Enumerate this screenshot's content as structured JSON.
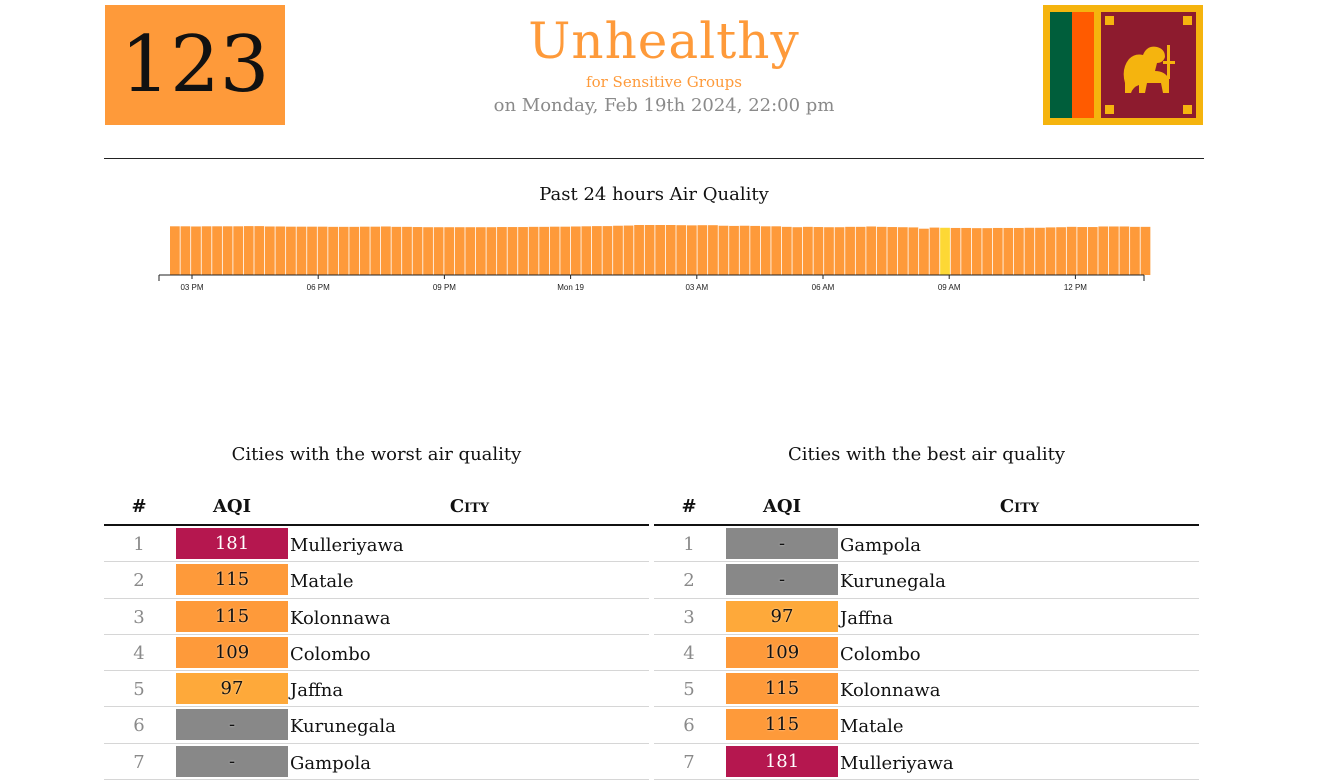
{
  "header": {
    "aqi": "123",
    "status": "Unhealthy",
    "status_sub": "for Sensitive Groups",
    "timestamp": "on Monday, Feb 19th 2024, 22:00 pm",
    "accent_color": "#fe9a3a",
    "flag_icon": "sri-lanka-flag-icon"
  },
  "chart_data": {
    "type": "bar",
    "title": "Past 24 hours Air Quality",
    "x_tick_labels": [
      "03 PM",
      "06 PM",
      "09 PM",
      "Mon 19",
      "03 AM",
      "06 AM",
      "09 AM",
      "12 PM"
    ],
    "values": [
      107,
      107,
      106,
      107,
      107,
      107,
      107,
      108,
      108,
      106,
      106,
      105,
      105,
      105,
      105,
      104,
      104,
      104,
      105,
      105,
      106,
      104,
      104,
      103,
      102,
      102,
      102,
      102,
      102,
      102,
      102,
      103,
      103,
      103,
      104,
      104,
      105,
      105,
      106,
      107,
      108,
      108,
      110,
      111,
      114,
      114,
      114,
      114,
      113,
      112,
      113,
      113,
      110,
      109,
      110,
      109,
      107,
      107,
      104,
      102,
      104,
      103,
      102,
      102,
      104,
      104,
      106,
      104,
      103,
      102,
      101,
      94,
      100,
      99,
      98,
      98,
      97,
      97,
      98,
      98,
      98,
      99,
      99,
      101,
      102,
      104,
      103,
      103,
      106,
      106,
      106,
      104,
      104
    ],
    "highlight_index": 73,
    "bar_color": "#fe9a3a",
    "highlight_color": "#fdd835"
  },
  "worst": {
    "title": "Cities with the worst air quality",
    "headers": {
      "rank": "#",
      "aqi": "AQI",
      "city": "City"
    },
    "rows": [
      {
        "rank": "1",
        "aqi": "181",
        "city": "Mulleriyawa",
        "color": "#b5174f",
        "light": true
      },
      {
        "rank": "2",
        "aqi": "115",
        "city": "Matale",
        "color": "#fe9a3a",
        "light": false
      },
      {
        "rank": "3",
        "aqi": "115",
        "city": "Kolonnawa",
        "color": "#fe9a3a",
        "light": false
      },
      {
        "rank": "4",
        "aqi": "109",
        "city": "Colombo",
        "color": "#fe9a3a",
        "light": false
      },
      {
        "rank": "5",
        "aqi": "97",
        "city": "Jaffna",
        "color": "#fea93a",
        "light": false
      },
      {
        "rank": "6",
        "aqi": "-",
        "city": "Kurunegala",
        "color": "#888888",
        "light": false
      },
      {
        "rank": "7",
        "aqi": "-",
        "city": "Gampola",
        "color": "#888888",
        "light": false
      }
    ]
  },
  "best": {
    "title": "Cities with the best air quality",
    "headers": {
      "rank": "#",
      "aqi": "AQI",
      "city": "City"
    },
    "rows": [
      {
        "rank": "1",
        "aqi": "-",
        "city": "Gampola",
        "color": "#888888",
        "light": false
      },
      {
        "rank": "2",
        "aqi": "-",
        "city": "Kurunegala",
        "color": "#888888",
        "light": false
      },
      {
        "rank": "3",
        "aqi": "97",
        "city": "Jaffna",
        "color": "#fea93a",
        "light": false
      },
      {
        "rank": "4",
        "aqi": "109",
        "city": "Colombo",
        "color": "#fe9a3a",
        "light": false
      },
      {
        "rank": "5",
        "aqi": "115",
        "city": "Kolonnawa",
        "color": "#fe9a3a",
        "light": false
      },
      {
        "rank": "6",
        "aqi": "115",
        "city": "Matale",
        "color": "#fe9a3a",
        "light": false
      },
      {
        "rank": "7",
        "aqi": "181",
        "city": "Mulleriyawa",
        "color": "#b5174f",
        "light": true
      }
    ]
  }
}
